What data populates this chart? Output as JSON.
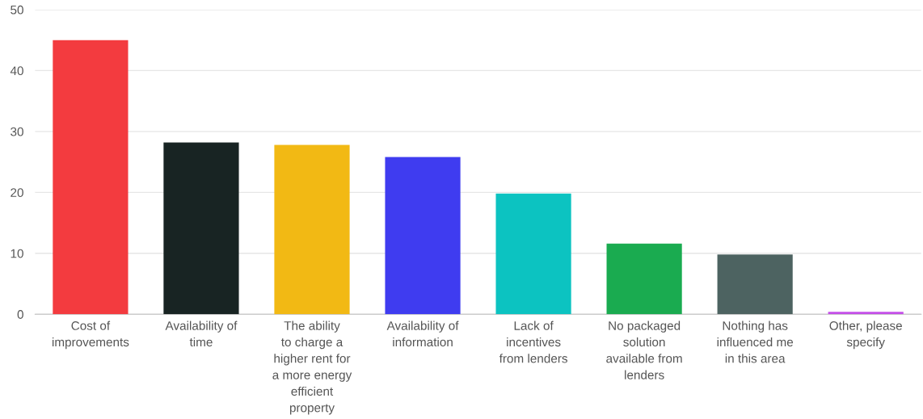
{
  "chart_data": {
    "type": "bar",
    "categories": [
      "Cost of\nimprovements",
      "Availability of\ntime",
      "The ability\nto charge a\nhigher rent for\na more energy\nefficient\nproperty",
      "Availability of\ninformation",
      "Lack of\nincentives\nfrom lenders",
      "No packaged\nsolution\navailable from\nlenders",
      "Nothing has\ninfluenced me\nin this area",
      "Other, please\nspecify"
    ],
    "values": [
      45,
      28.2,
      27.8,
      25.8,
      19.8,
      11.6,
      9.8,
      0.4
    ],
    "colors": [
      "#f33b3f",
      "#182423",
      "#f2b914",
      "#3f3cf0",
      "#0cc3c1",
      "#1aab50",
      "#4d6361",
      "#c44fe8"
    ],
    "ylim": [
      0,
      50
    ],
    "yticks": [
      0,
      10,
      20,
      30,
      40,
      50
    ],
    "grid": "y",
    "legend": false
  }
}
